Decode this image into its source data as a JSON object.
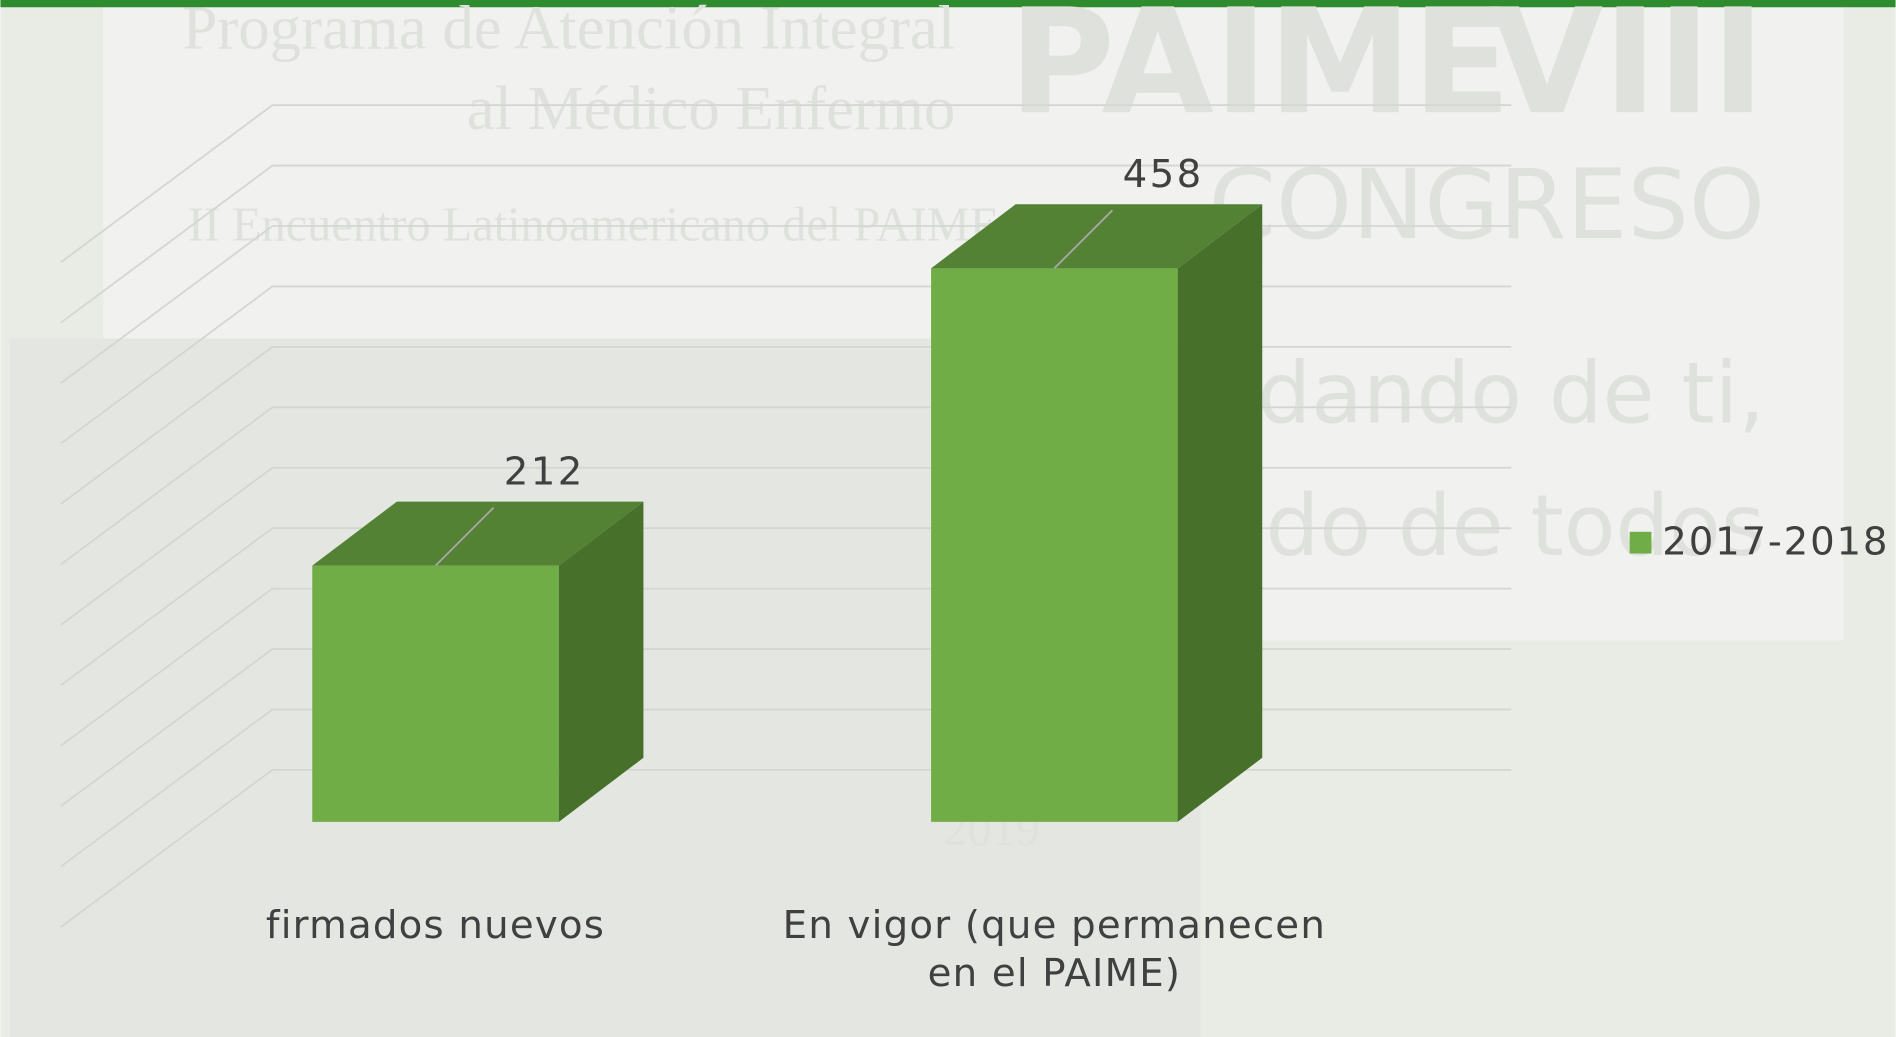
{
  "chart_data": {
    "type": "bar3d",
    "categories": [
      "firmados nuevos",
      "En vigor (que permanecen en el PAIME)"
    ],
    "series": [
      {
        "name": "2017-2018",
        "color": "#70ad47",
        "values": [
          212,
          458
        ]
      }
    ],
    "ylim": [
      0,
      550
    ],
    "yticks": [
      0,
      50,
      100,
      150,
      200,
      250,
      300,
      350,
      400,
      450,
      500,
      550
    ],
    "grid": true,
    "legend": "right",
    "background_texts": [
      "Programa de Atención Integral",
      "al Médico Enfermo",
      "II Encuentro Latinoamericano del PAIME",
      "PAIME",
      "VIII",
      "CONGRESO",
      "Cuidando de ti,",
      "cuidando de todos",
      "2019"
    ]
  }
}
